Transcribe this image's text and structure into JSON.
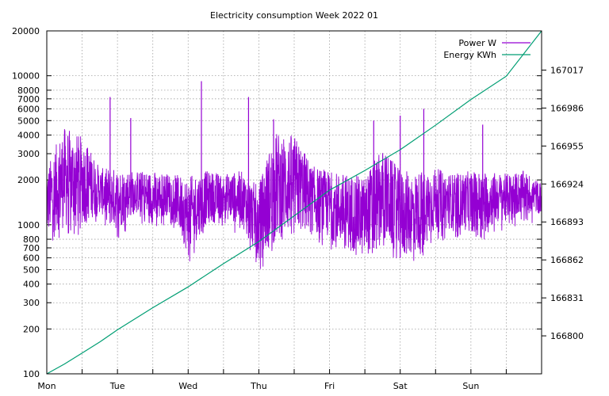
{
  "chart_data": {
    "type": "line",
    "title": "Electricity consumption Week 2022 01",
    "x_axis": {
      "ticks": [
        "Mon",
        "Tue",
        "Wed",
        "Thu",
        "Fri",
        "Sat",
        "Sun"
      ],
      "minor_ticks": 14,
      "grid": true
    },
    "y_axis_left": {
      "scale": "log",
      "range": [
        100,
        20000
      ],
      "tick_values": [
        100,
        200,
        300,
        400,
        500,
        600,
        700,
        800,
        1000,
        2000,
        3000,
        4000,
        5000,
        6000,
        7000,
        8000,
        10000,
        20000
      ],
      "tick_labels": [
        "100",
        "200",
        "300",
        "400",
        "500",
        "600",
        "700",
        "800",
        "1000",
        "2000",
        "3000",
        "4000",
        "5000",
        "6000",
        "7000",
        "8000",
        "10000",
        "20000"
      ],
      "grid": true
    },
    "y_axis_right": {
      "scale": "linear",
      "range": [
        166769,
        167049
      ],
      "tick_values": [
        166800,
        166831,
        166862,
        166893,
        166924,
        166955,
        166986,
        167017
      ],
      "tick_labels": [
        "166800",
        "166831",
        "166862",
        "166893",
        "166924",
        "166955",
        "166986",
        "167017"
      ]
    },
    "legend": {
      "position": "top-right",
      "entries": [
        {
          "label": "Power W",
          "color": "#9400d3"
        },
        {
          "label": "Energy KWh",
          "color": "#009e73"
        }
      ]
    },
    "series": [
      {
        "name": "Power W",
        "axis": "left",
        "color": "#9400d3",
        "x_unit": "hours from Mon 00:00",
        "band_x": [
          0,
          6,
          12,
          18,
          24,
          30,
          36,
          42,
          48,
          54,
          60,
          66,
          72,
          78,
          84,
          90,
          96,
          102,
          108,
          114,
          120,
          126,
          132,
          138,
          144,
          150,
          156,
          162,
          168
        ],
        "band_low": [
          850,
          950,
          1000,
          1200,
          900,
          1250,
          1000,
          1200,
          600,
          1000,
          1100,
          1000,
          550,
          800,
          900,
          900,
          800,
          700,
          600,
          800,
          600,
          650,
          900,
          950,
          900,
          950,
          1100,
          1200,
          1200
        ],
        "band_high": [
          2300,
          4500,
          3900,
          2400,
          2400,
          2300,
          2300,
          2200,
          2100,
          2300,
          2200,
          2300,
          1800,
          4200,
          4000,
          2500,
          2300,
          2200,
          2100,
          3200,
          2300,
          2300,
          2400,
          2200,
          2300,
          2300,
          2200,
          2300,
          1900
        ],
        "spikes": [
          {
            "x": 21.5,
            "y": 7200
          },
          {
            "x": 28.5,
            "y": 5200
          },
          {
            "x": 52.5,
            "y": 9200
          },
          {
            "x": 68.5,
            "y": 7200
          },
          {
            "x": 77,
            "y": 5100
          },
          {
            "x": 111,
            "y": 5000
          },
          {
            "x": 120,
            "y": 5400
          },
          {
            "x": 128,
            "y": 6000
          },
          {
            "x": 148,
            "y": 4700
          }
        ]
      },
      {
        "name": "Energy KWh",
        "axis": "right",
        "color": "#009e73",
        "x_unit": "hours from Mon 00:00",
        "x": [
          0,
          6,
          12,
          18,
          24,
          36,
          48,
          60,
          72,
          84,
          96,
          108,
          120,
          132,
          144,
          156,
          168
        ],
        "y": [
          166769,
          166777,
          166786,
          166795,
          166805,
          166823,
          166840,
          166859,
          166877,
          166898,
          166919,
          166935,
          166952,
          166972,
          166993,
          167012,
          167049
        ]
      }
    ]
  }
}
